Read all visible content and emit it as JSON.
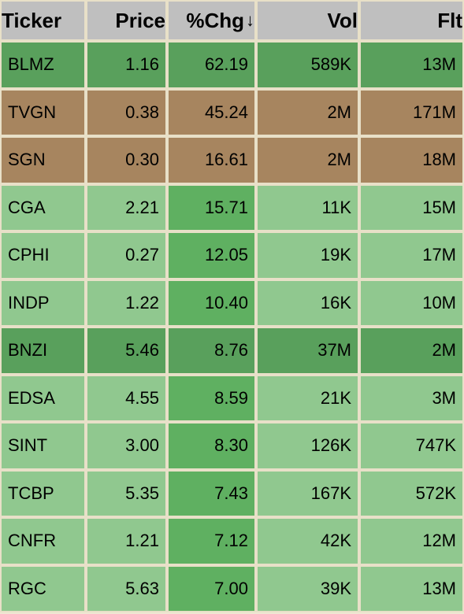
{
  "table": {
    "columns": [
      {
        "label": "Ticker",
        "class": "col-ticker",
        "sorted": false
      },
      {
        "label": "Price",
        "class": "col-price",
        "sorted": false
      },
      {
        "label": "%Chg",
        "class": "col-chg",
        "sorted": true,
        "sort_dir": "desc"
      },
      {
        "label": "Vol",
        "class": "col-vol",
        "sorted": false
      },
      {
        "label": "Flt",
        "class": "col-flt",
        "sorted": false
      }
    ],
    "header_bg": "#bfbfbf",
    "border_color": "#e8e0c8",
    "colors": {
      "green_dark": "#59a05c",
      "green_mid": "#5fb061",
      "green_light": "#90c88f",
      "brown": "#a7855f"
    },
    "rows": [
      {
        "ticker": "BLMZ",
        "price": "1.16",
        "chg": "62.19",
        "vol": "589K",
        "flt": "13M",
        "cell_bg": {
          "ticker": "green_dark",
          "price": "green_dark",
          "chg": "green_dark",
          "vol": "green_dark",
          "flt": "green_dark"
        }
      },
      {
        "ticker": "TVGN",
        "price": "0.38",
        "chg": "45.24",
        "vol": "2M",
        "flt": "171M",
        "cell_bg": {
          "ticker": "brown",
          "price": "brown",
          "chg": "brown",
          "vol": "brown",
          "flt": "brown"
        }
      },
      {
        "ticker": "SGN",
        "price": "0.30",
        "chg": "16.61",
        "vol": "2M",
        "flt": "18M",
        "cell_bg": {
          "ticker": "brown",
          "price": "brown",
          "chg": "brown",
          "vol": "brown",
          "flt": "brown"
        }
      },
      {
        "ticker": "CGA",
        "price": "2.21",
        "chg": "15.71",
        "vol": "11K",
        "flt": "15M",
        "cell_bg": {
          "ticker": "green_light",
          "price": "green_light",
          "chg": "green_mid",
          "vol": "green_light",
          "flt": "green_light"
        }
      },
      {
        "ticker": "CPHI",
        "price": "0.27",
        "chg": "12.05",
        "vol": "19K",
        "flt": "17M",
        "cell_bg": {
          "ticker": "green_light",
          "price": "green_light",
          "chg": "green_mid",
          "vol": "green_light",
          "flt": "green_light"
        }
      },
      {
        "ticker": "INDP",
        "price": "1.22",
        "chg": "10.40",
        "vol": "16K",
        "flt": "10M",
        "cell_bg": {
          "ticker": "green_light",
          "price": "green_light",
          "chg": "green_mid",
          "vol": "green_light",
          "flt": "green_light"
        }
      },
      {
        "ticker": "BNZI",
        "price": "5.46",
        "chg": "8.76",
        "vol": "37M",
        "flt": "2M",
        "cell_bg": {
          "ticker": "green_dark",
          "price": "green_dark",
          "chg": "green_dark",
          "vol": "green_dark",
          "flt": "green_dark"
        }
      },
      {
        "ticker": "EDSA",
        "price": "4.55",
        "chg": "8.59",
        "vol": "21K",
        "flt": "3M",
        "cell_bg": {
          "ticker": "green_light",
          "price": "green_light",
          "chg": "green_mid",
          "vol": "green_light",
          "flt": "green_light"
        }
      },
      {
        "ticker": "SINT",
        "price": "3.00",
        "chg": "8.30",
        "vol": "126K",
        "flt": "747K",
        "cell_bg": {
          "ticker": "green_light",
          "price": "green_light",
          "chg": "green_mid",
          "vol": "green_light",
          "flt": "green_light"
        }
      },
      {
        "ticker": "TCBP",
        "price": "5.35",
        "chg": "7.43",
        "vol": "167K",
        "flt": "572K",
        "cell_bg": {
          "ticker": "green_light",
          "price": "green_light",
          "chg": "green_mid",
          "vol": "green_light",
          "flt": "green_light"
        }
      },
      {
        "ticker": "CNFR",
        "price": "1.21",
        "chg": "7.12",
        "vol": "42K",
        "flt": "12M",
        "cell_bg": {
          "ticker": "green_light",
          "price": "green_light",
          "chg": "green_mid",
          "vol": "green_light",
          "flt": "green_light"
        }
      },
      {
        "ticker": "RGC",
        "price": "5.63",
        "chg": "7.00",
        "vol": "39K",
        "flt": "13M",
        "cell_bg": {
          "ticker": "green_light",
          "price": "green_light",
          "chg": "green_mid",
          "vol": "green_light",
          "flt": "green_light"
        }
      }
    ]
  }
}
